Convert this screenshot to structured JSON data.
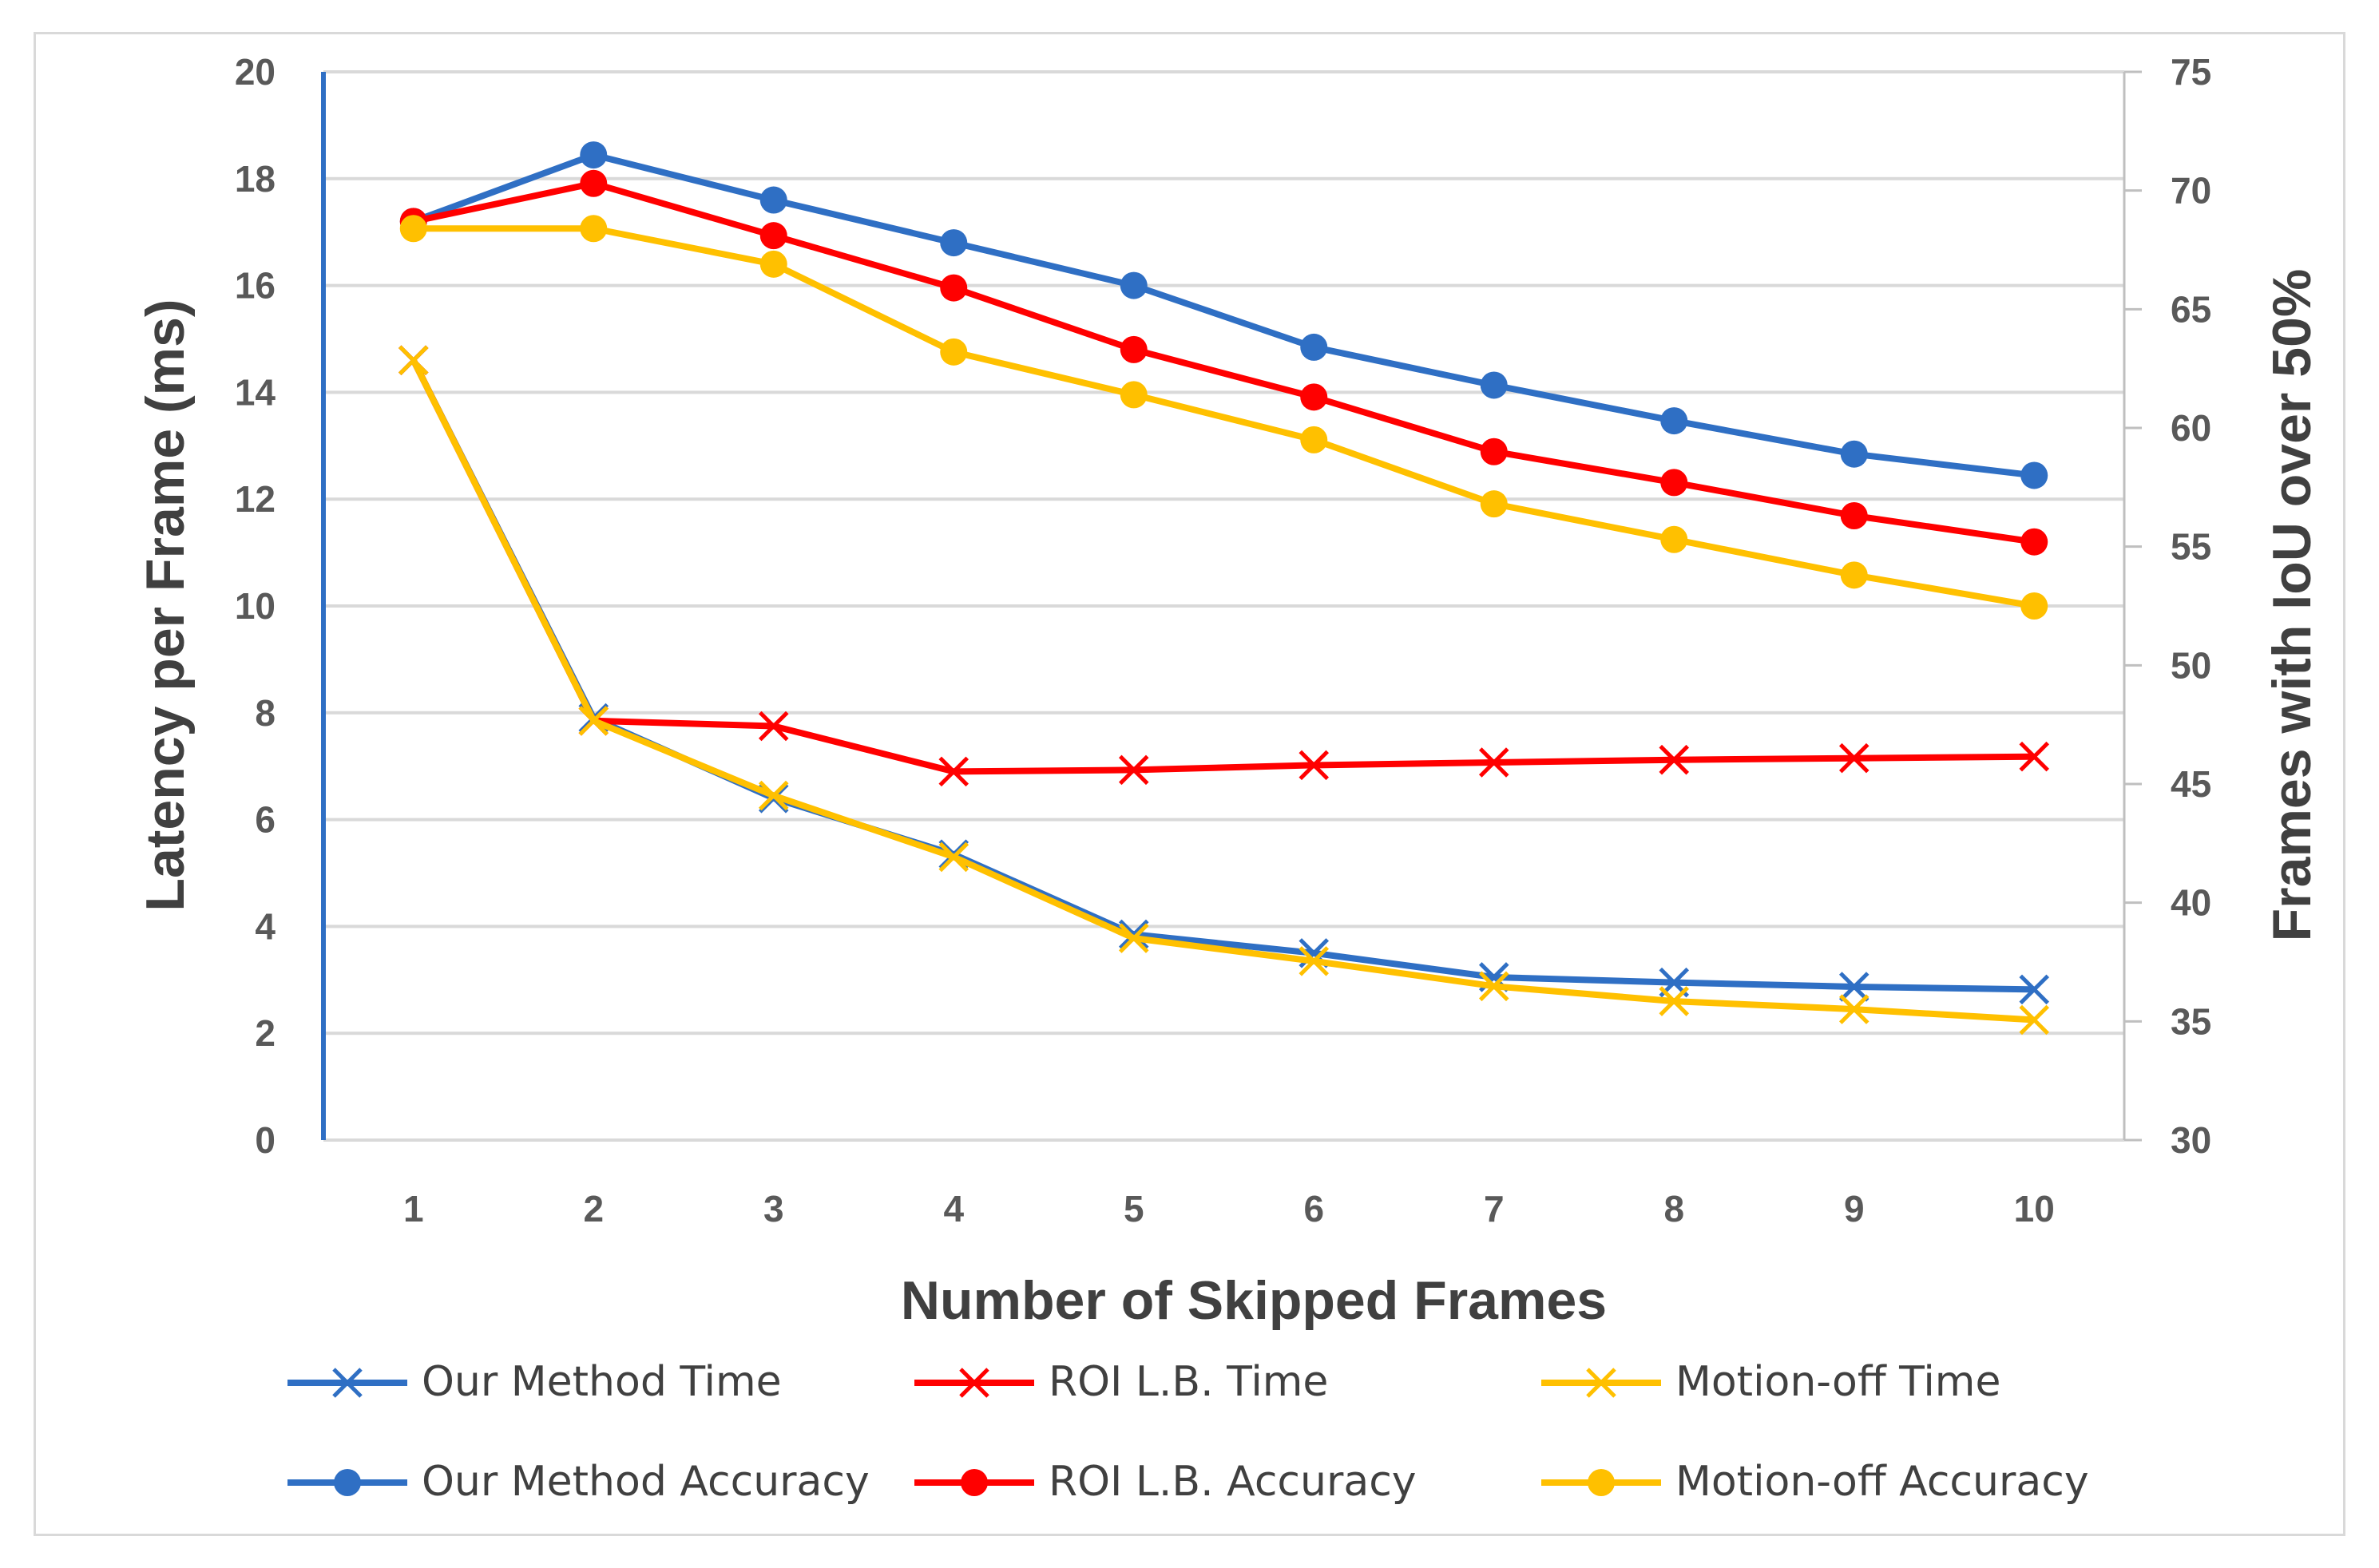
{
  "chart_data": {
    "type": "line",
    "title": "",
    "xlabel": "Number of Skipped Frames",
    "ylabel": "Latency per Frame (ms)",
    "y2label": "Frames with IoU over 50%",
    "x": [
      1,
      2,
      3,
      4,
      5,
      6,
      7,
      8,
      9,
      10
    ],
    "x_ticks": [
      "1",
      "2",
      "3",
      "4",
      "5",
      "6",
      "7",
      "8",
      "9",
      "10"
    ],
    "ylim": [
      0,
      20
    ],
    "y_ticks": [
      "0",
      "2",
      "4",
      "6",
      "8",
      "10",
      "12",
      "14",
      "16",
      "18",
      "20"
    ],
    "y2lim": [
      30,
      75
    ],
    "y2_ticks": [
      "30",
      "35",
      "40",
      "45",
      "50",
      "55",
      "60",
      "65",
      "70",
      "75"
    ],
    "grid": true,
    "legend_position": "bottom",
    "series": [
      {
        "name": "Our Method Time",
        "axis": "left",
        "marker": "x",
        "color": "#2f6fc4",
        "values": [
          14.6,
          7.9,
          6.4,
          5.35,
          3.85,
          3.5,
          3.05,
          2.95,
          2.87,
          2.82
        ]
      },
      {
        "name": "ROI L.B. Time",
        "axis": "left",
        "marker": "x",
        "color": "#ff0000",
        "values": [
          14.6,
          7.85,
          7.75,
          6.9,
          6.93,
          7.02,
          7.07,
          7.12,
          7.15,
          7.18
        ]
      },
      {
        "name": "Motion-off Time",
        "axis": "left",
        "marker": "x",
        "color": "#ffc000",
        "values": [
          14.6,
          7.85,
          6.45,
          5.3,
          3.78,
          3.35,
          2.88,
          2.6,
          2.45,
          2.25
        ]
      },
      {
        "name": "Our Method Accuracy",
        "axis": "right",
        "marker": "circle",
        "color": "#2f6fc4",
        "values": [
          68.7,
          71.5,
          69.6,
          67.8,
          66.0,
          63.4,
          61.8,
          60.3,
          58.9,
          58.0
        ]
      },
      {
        "name": "ROI L.B. Accuracy",
        "axis": "right",
        "marker": "circle",
        "color": "#ff0000",
        "values": [
          68.7,
          70.3,
          68.1,
          65.9,
          63.3,
          61.3,
          59.0,
          57.7,
          56.3,
          55.2
        ]
      },
      {
        "name": "Motion-off Accuracy",
        "axis": "right",
        "marker": "circle",
        "color": "#ffc000",
        "values": [
          68.4,
          68.4,
          66.9,
          63.2,
          61.4,
          59.5,
          56.8,
          55.3,
          53.8,
          52.5
        ]
      }
    ]
  }
}
